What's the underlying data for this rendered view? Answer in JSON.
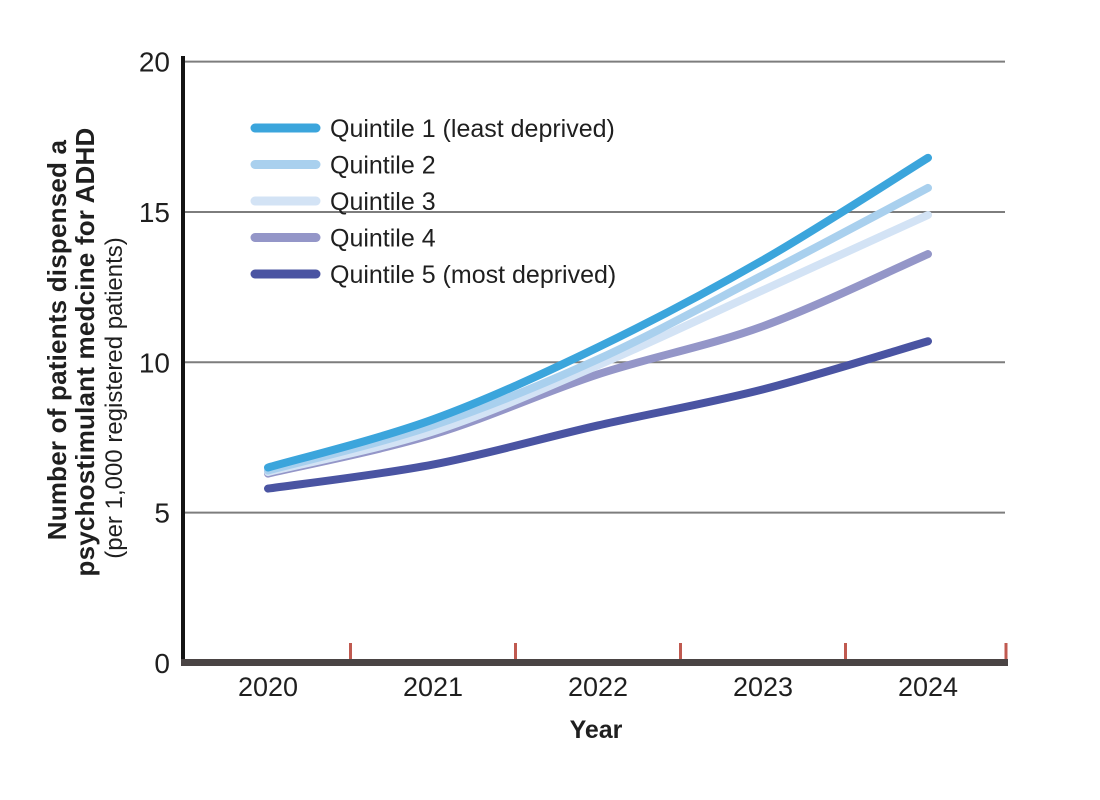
{
  "figure": {
    "background": "#ffffff"
  },
  "y_axis": {
    "title_line1": "Number of patients dispensed a",
    "title_line2": "psychostimulant medcine for ADHD",
    "title_line3": "(per 1,000 registered patients)"
  },
  "x_axis": {
    "title": "Year"
  },
  "colors": {
    "y_axis_line": "#141414",
    "x_axis_line": "#4a4444",
    "gridline": "#7d7d7d",
    "tick_mark": "#c05a50",
    "tick_label": "#1f1f1f",
    "legend_text": "#2b2b2b"
  },
  "chart_data": {
    "type": "line",
    "title": "",
    "xlabel": "Year",
    "ylabel": "Number of patients dispensed a psychostimulant medcine for ADHD (per 1,000 registered patients)",
    "x": [
      2020,
      2021,
      2022,
      2023,
      2024
    ],
    "series": [
      {
        "name": "Quintile 1 (least deprived)",
        "color": "#3ba5dc",
        "values": [
          6.5,
          8.1,
          10.5,
          13.4,
          16.8
        ]
      },
      {
        "name": "Quintile 2",
        "color": "#a9d0ee",
        "values": [
          6.4,
          7.9,
          10.1,
          12.9,
          15.8
        ]
      },
      {
        "name": "Quintile 3",
        "color": "#d3e3f5",
        "values": [
          6.35,
          7.7,
          9.9,
          12.4,
          14.9
        ]
      },
      {
        "name": "Quintile 4",
        "color": "#9496c8",
        "values": [
          6.3,
          7.6,
          9.6,
          11.2,
          13.6
        ]
      },
      {
        "name": "Quintile 5 (most deprived)",
        "color": "#4a54a2",
        "values": [
          5.8,
          6.6,
          7.9,
          9.1,
          10.7
        ]
      }
    ],
    "ylim": [
      0,
      20
    ],
    "yticks": [
      0,
      5,
      10,
      15,
      20
    ],
    "grid": true,
    "legend_position": "top-left"
  }
}
